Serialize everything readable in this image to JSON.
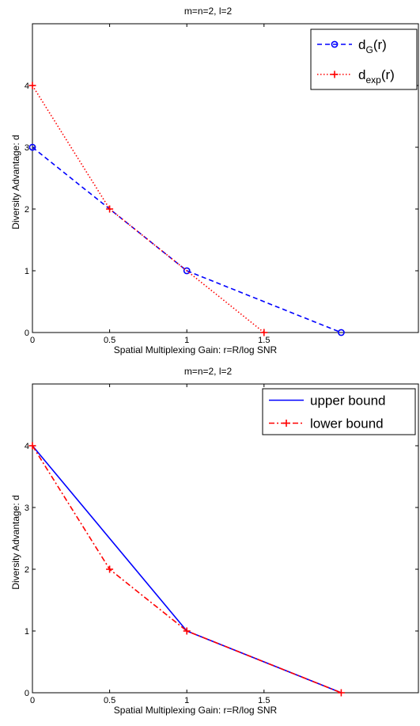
{
  "chart_data": [
    {
      "type": "line",
      "title": "m=n=2, l=2",
      "xlabel": "Spatial Multiplexing Gain:   r=R/log SNR",
      "ylabel": "Diversity Advantage: d",
      "xlim": [
        0,
        2.5
      ],
      "ylim": [
        0,
        5
      ],
      "xticks": [
        0,
        0.5,
        1,
        1.5
      ],
      "xtick_labels": [
        "0",
        "0.5",
        "1",
        "1.5"
      ],
      "yticks": [
        0,
        1,
        2,
        3,
        4
      ],
      "ytick_labels": [
        "0",
        "1",
        "2",
        "3",
        "4"
      ],
      "grid": false,
      "legend_position": "top-right",
      "series": [
        {
          "key": "dg",
          "legend_main": "d",
          "legend_sub": "G",
          "legend_tail": "(r)",
          "x": [
            0,
            0.5,
            1,
            2
          ],
          "y": [
            3,
            2,
            1,
            0
          ],
          "marker_x": [
            0,
            1,
            2
          ],
          "marker_y": [
            3,
            1,
            0
          ],
          "color": "#0000ff",
          "dash": "6,4",
          "marker": "circle"
        },
        {
          "key": "dexp",
          "legend_main": "d",
          "legend_sub": "exp",
          "legend_tail": "(r)",
          "x": [
            0,
            0.5,
            1.5
          ],
          "y": [
            4,
            2,
            0
          ],
          "marker_x": [
            0,
            0.5,
            1.5
          ],
          "marker_y": [
            4,
            2,
            0
          ],
          "color": "#ff0000",
          "dash": "1.5,2.5",
          "marker": "plus"
        }
      ]
    },
    {
      "type": "line",
      "title": "m=n=2, l=2",
      "xlabel": "Spatial Multiplexing Gain:   r=R/log SNR",
      "ylabel": "Diversity Advantage: d",
      "xlim": [
        0,
        2.5
      ],
      "ylim": [
        0,
        5
      ],
      "xticks": [
        0,
        0.5,
        1,
        1.5
      ],
      "xtick_labels": [
        "0",
        "0.5",
        "1",
        "1.5"
      ],
      "yticks": [
        0,
        1,
        2,
        3,
        4
      ],
      "ytick_labels": [
        "0",
        "1",
        "2",
        "3",
        "4"
      ],
      "grid": false,
      "legend_position": "top-right",
      "series": [
        {
          "key": "upper",
          "legend_main": "upper bound",
          "x": [
            0,
            1,
            2
          ],
          "y": [
            4,
            1,
            0
          ],
          "marker_x": [],
          "marker_y": [],
          "color": "#0000ff",
          "dash": "",
          "marker": "none"
        },
        {
          "key": "lower",
          "legend_main": "lower bound",
          "x": [
            0,
            0.5,
            1,
            2
          ],
          "y": [
            4,
            2,
            1,
            0
          ],
          "marker_x": [
            0,
            0.5,
            1,
            2
          ],
          "marker_y": [
            4,
            2,
            1,
            0
          ],
          "color": "#ff0000",
          "dash": "7,3,2,3",
          "marker": "plus"
        }
      ]
    }
  ]
}
